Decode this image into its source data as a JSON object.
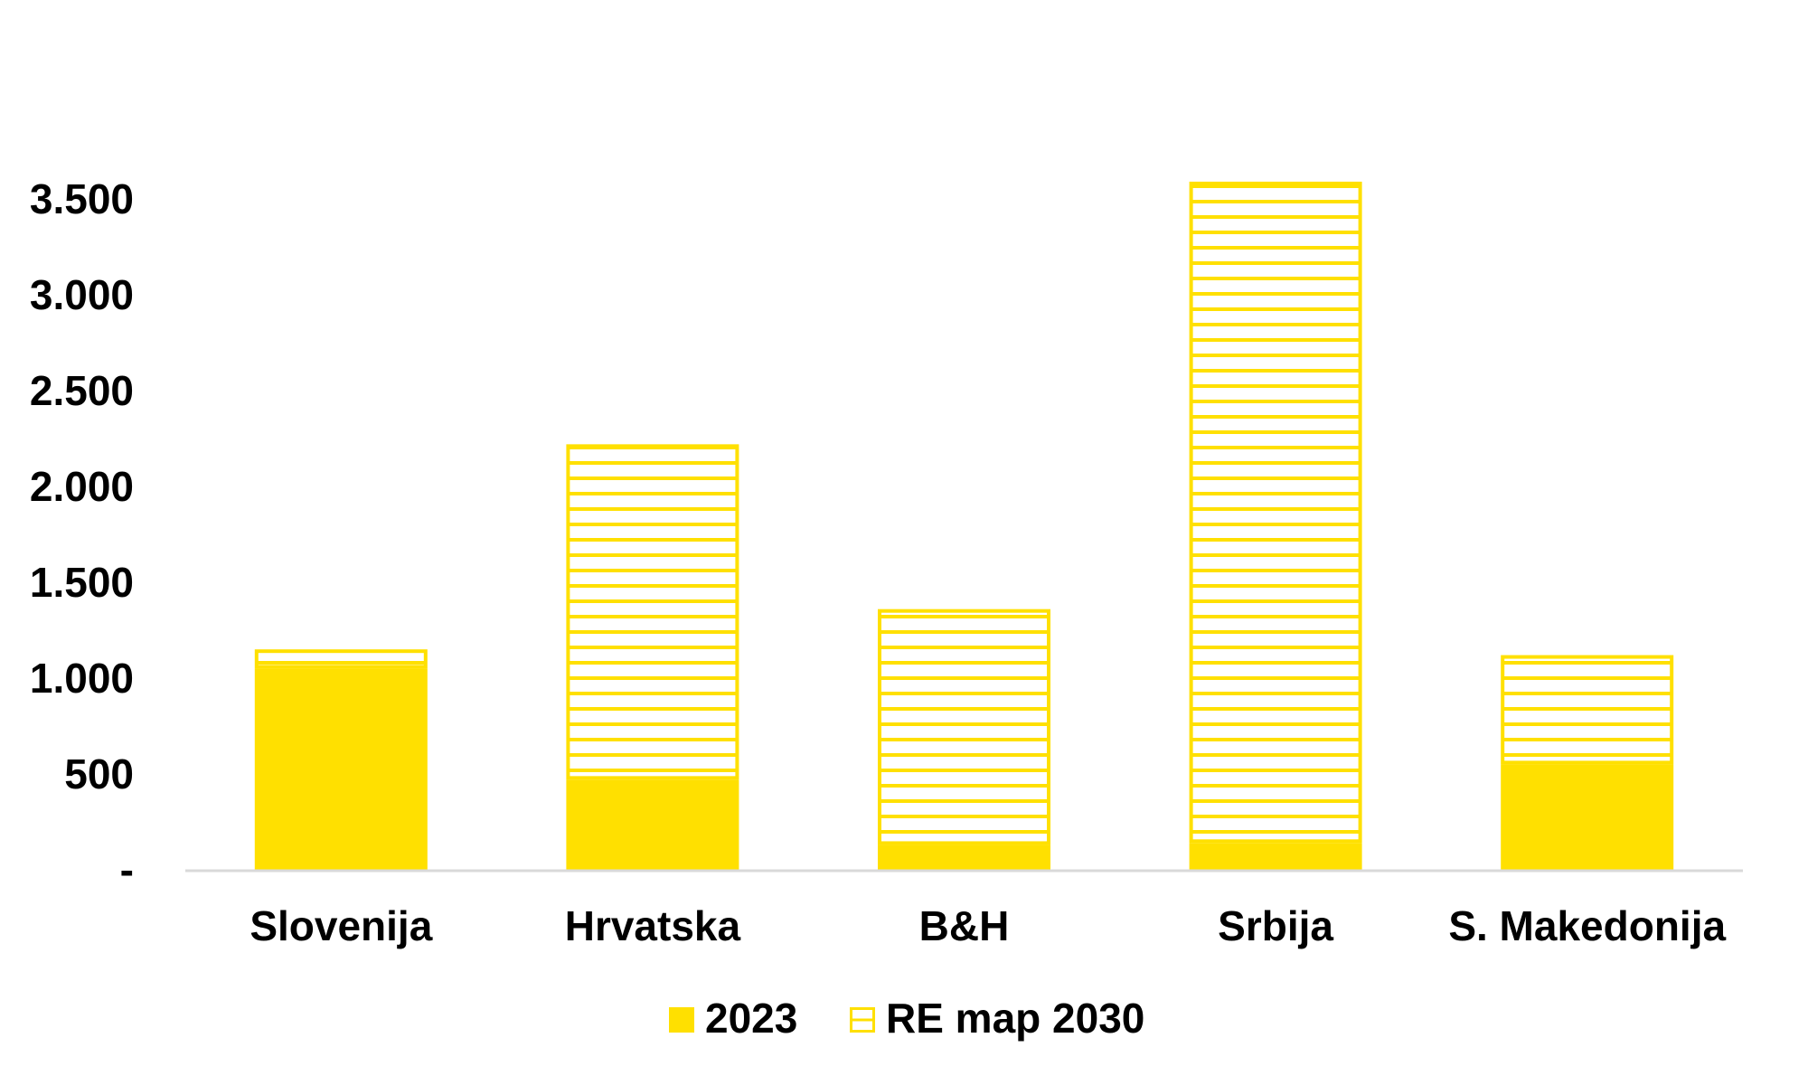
{
  "chart_data": {
    "type": "bar",
    "stacked": true,
    "categories": [
      "Slovenija",
      "Hrvatska",
      "B&H",
      "Srbija",
      "S. Makedonija"
    ],
    "series": [
      {
        "name": "2023",
        "values": [
          1050,
          470,
          130,
          140,
          550
        ],
        "color": "#FFE000",
        "pattern": "solid"
      },
      {
        "name": "RE map 2030",
        "values": [
          100,
          1750,
          1230,
          3450,
          570
        ],
        "color": "#FFE000",
        "pattern": "horizontal-lines"
      }
    ],
    "ylim": [
      0,
      3500
    ],
    "yticks": [
      0,
      500,
      1000,
      1500,
      2000,
      2500,
      3000,
      3500
    ],
    "ytick_labels": [
      "-",
      "500",
      "1.000",
      "1.500",
      "2.000",
      "2.500",
      "3.000",
      "3.500"
    ],
    "title": "",
    "xlabel": "",
    "ylabel": "",
    "grid": false,
    "legend_position": "bottom",
    "axis_color": "#D9D9D9",
    "background": "#FFFFFF"
  }
}
